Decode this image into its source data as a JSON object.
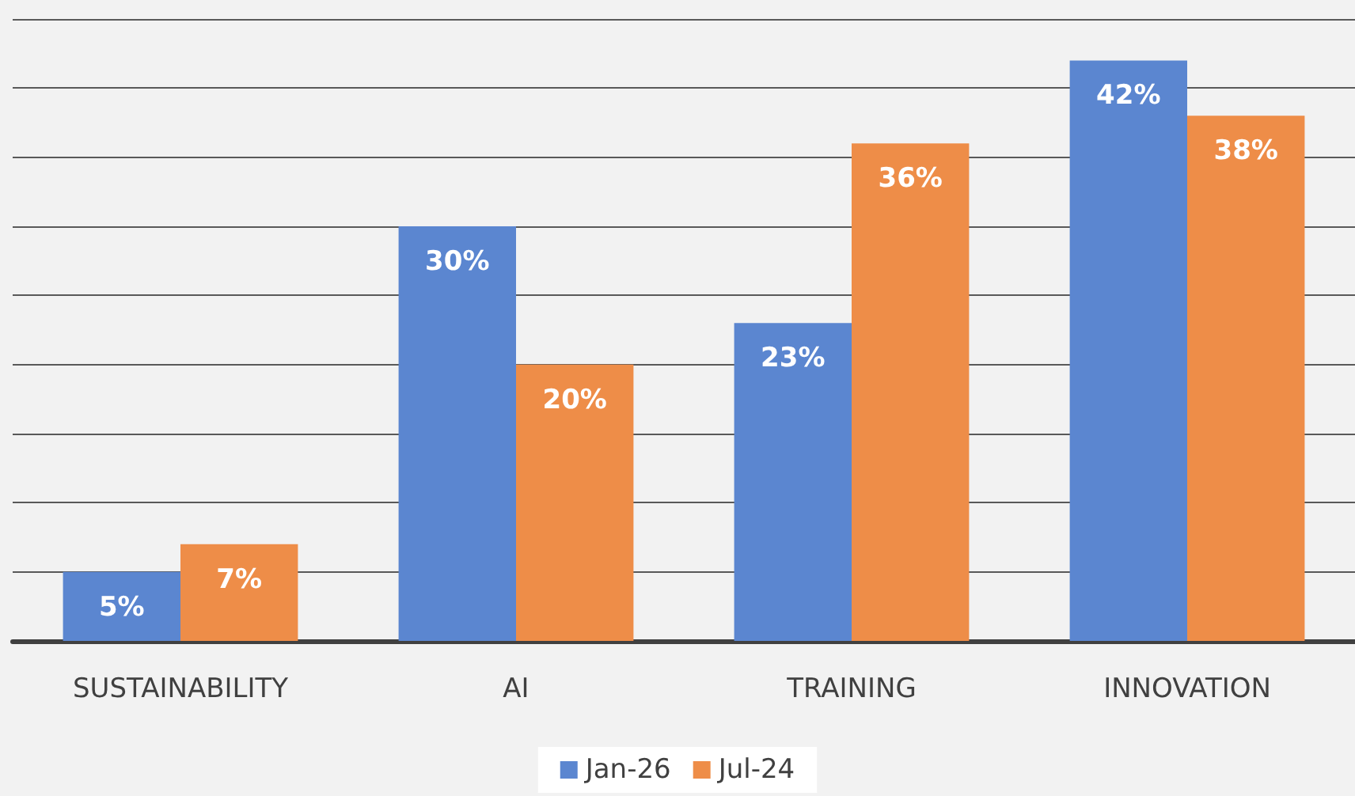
{
  "chart_data": {
    "type": "bar",
    "categories": [
      "SUSTAINABILITY",
      "AI",
      "TRAINING",
      "INNOVATION"
    ],
    "series": [
      {
        "name": "Jan-26",
        "color": "#5b86d0",
        "values": [
          5,
          30,
          23,
          42
        ],
        "value_labels": [
          "5%",
          "30%",
          "23%",
          "42%"
        ]
      },
      {
        "name": "Jul-24",
        "color": "#ee8d48",
        "values": [
          7,
          20,
          36,
          38
        ],
        "value_labels": [
          "7%",
          "20%",
          "36%",
          "38%"
        ]
      }
    ],
    "ylim": [
      0,
      45
    ],
    "yticks": [
      {
        "value": 0,
        "label": null
      },
      {
        "value": 5,
        "label": null
      },
      {
        "value": 10,
        "label": null
      },
      {
        "value": 15,
        "label": null
      },
      {
        "value": 20,
        "label": null
      },
      {
        "value": 25,
        "label": null
      },
      {
        "value": 30,
        "label": null
      },
      {
        "value": 35,
        "label": null
      },
      {
        "value": 40,
        "label": null
      },
      {
        "value": 45,
        "label": null
      }
    ],
    "grid": "y",
    "legend": "bottom",
    "tick_labels": "x"
  }
}
